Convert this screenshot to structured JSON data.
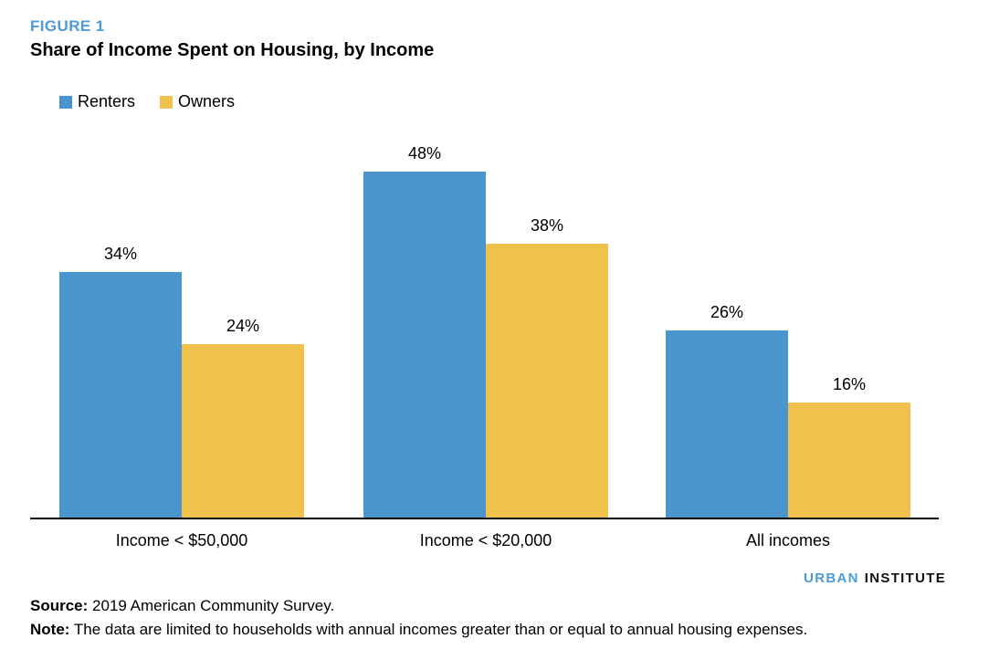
{
  "figure_label": "FIGURE 1",
  "title": "Share of Income Spent on Housing, by Income",
  "chart_data": {
    "type": "bar",
    "categories": [
      "Income < $50,000",
      "Income < $20,000",
      "All incomes"
    ],
    "series": [
      {
        "name": "Renters",
        "color": "#4A95CD",
        "values": [
          34,
          48,
          26
        ]
      },
      {
        "name": "Owners",
        "color": "#F1C24B",
        "values": [
          24,
          38,
          16
        ]
      }
    ],
    "value_label_format": "{v}%",
    "data_labels": [
      "34%",
      "24%",
      "48%",
      "38%",
      "26%",
      "16%"
    ],
    "ylim": [
      0,
      50
    ],
    "grid": false,
    "legend_position": "top-left",
    "axis_color": "#000000"
  },
  "branding": {
    "urban": "URBAN",
    "institute": "INSTITUTE",
    "urban_color": "#4D9BD6",
    "institute_color": "#0E0E14"
  },
  "footer": {
    "source_label": "Source:",
    "source_text": "2019 American Community Survey.",
    "note_label": "Note:",
    "note_text": "The data are limited to households with annual incomes greater than or equal to annual housing expenses."
  },
  "colors": {
    "figure_label": "#4D9BD6",
    "renters": "#4A95CD",
    "owners": "#F1C24B",
    "text": "#000000"
  }
}
